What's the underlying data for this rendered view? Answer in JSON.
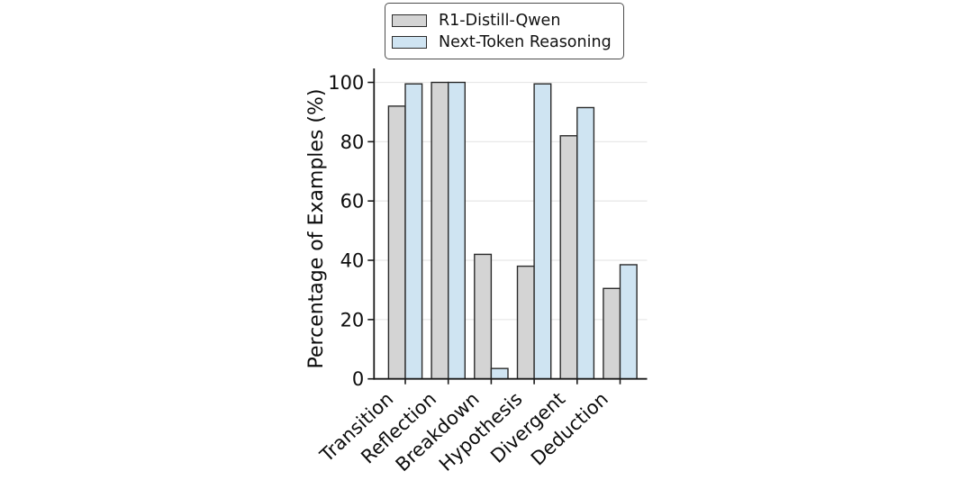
{
  "chart_data": {
    "type": "bar",
    "title": "",
    "categories": [
      "Transition",
      "Reflection",
      "Breakdown",
      "Hypothesis",
      "Divergent",
      "Deduction"
    ],
    "series": [
      {
        "name": "R1-Distill-Qwen",
        "color": "#d4d4d4",
        "edge_color": "#2b2b2b",
        "values": [
          92,
          100,
          42,
          38,
          82,
          30.5
        ]
      },
      {
        "name": "Next-Token Reasoning",
        "color": "#cfe4f2",
        "edge_color": "#2b2b2b",
        "values": [
          99.5,
          100,
          3.5,
          99.5,
          91.5,
          38.5
        ]
      }
    ],
    "xlabel": "",
    "ylabel": "Percentage of Examples (%)",
    "yticks": [
      0,
      20,
      40,
      60,
      80,
      100
    ],
    "ylim": [
      0,
      105
    ],
    "grid": true,
    "x_tick_label_rotation_deg": 43,
    "legend_position": "top-center",
    "colors": {
      "background": "#ffffff",
      "grid": "#e8e8e8",
      "spine": "#1a1a1a",
      "tick_text": "#0d0d0d",
      "legend_border": "#4d4d4d"
    }
  }
}
